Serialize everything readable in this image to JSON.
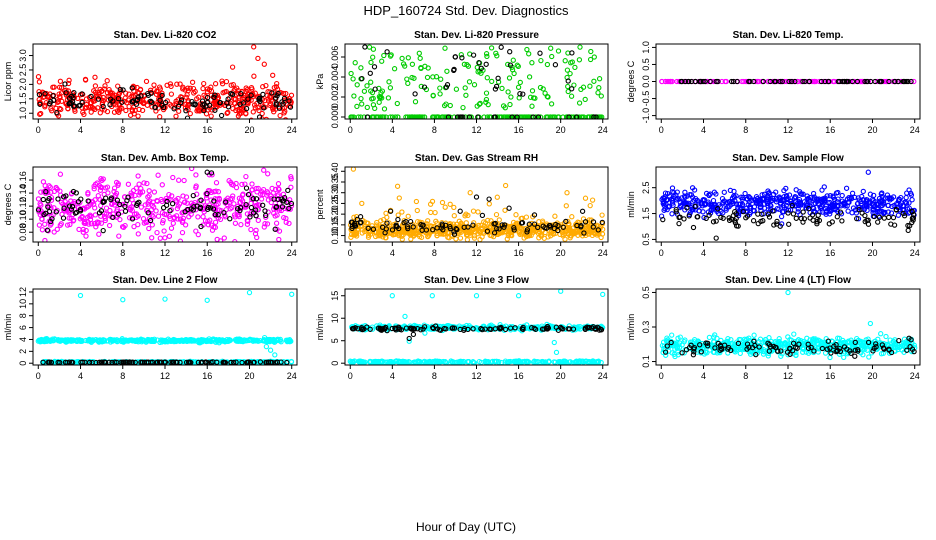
{
  "title": "HDP_160724  Std. Dev. Diagnostics",
  "xlabel": "Hour of Day (UTC)",
  "x_ticks": [
    0,
    4,
    8,
    12,
    16,
    20,
    24
  ],
  "xlim": [
    -0.5,
    24.5
  ],
  "chart_data": [
    {
      "type": "scatter",
      "title": "Stan. Dev. Li-820 CO2",
      "ylabel": "Licor ppm",
      "ylim": [
        0.8,
        3.4
      ],
      "y_ticks": [
        1.0,
        1.5,
        2.0,
        2.5,
        3.0
      ],
      "y_tick_labels": [
        "1.0",
        "1.5",
        "2.0",
        "2.5",
        "3.0"
      ],
      "series": [
        {
          "color": "#ff0000",
          "pattern": "noisy",
          "base": 1.45,
          "spread": 0.3,
          "count": 480,
          "outliers": [
            [
              20.4,
              3.3
            ],
            [
              20.8,
              2.9
            ],
            [
              21.4,
              2.7
            ],
            [
              18.4,
              2.6
            ]
          ]
        },
        {
          "color": "#000000",
          "pattern": "noisy",
          "base": 1.4,
          "spread": 0.2,
          "count": 110,
          "outliers": []
        }
      ]
    },
    {
      "type": "scatter",
      "title": "Stan. Dev. Li-820 Pressure",
      "ylabel": "kPa",
      "ylim": [
        -0.0002,
        0.0073
      ],
      "y_ticks": [
        0.0,
        0.002,
        0.004,
        0.006
      ],
      "y_tick_labels": [
        "0.000",
        "0.002",
        "0.004",
        "0.006"
      ],
      "series": [
        {
          "color": "#00cc00",
          "pattern": "bimodal",
          "levels": [
            0.0,
            0.005,
            0.006,
            0.007,
            0.004,
            0.003,
            0.002
          ],
          "count": 200,
          "outliers": []
        },
        {
          "color": "#00cc00",
          "pattern": "flat",
          "base": 0.0,
          "spread": 0.0,
          "count": 140,
          "outliers": []
        },
        {
          "color": "#000000",
          "pattern": "bimodal",
          "levels": [
            0.0,
            0.0,
            0.0,
            0.005,
            0.006,
            0.007,
            0.004,
            0.003
          ],
          "count": 50,
          "outliers": []
        }
      ]
    },
    {
      "type": "scatter",
      "title": "Stan. Dev. Li-820 Temp.",
      "ylabel": "degrees C",
      "ylim": [
        -1.1,
        1.1
      ],
      "y_ticks": [
        -1.0,
        -0.5,
        0.0,
        0.5,
        1.0
      ],
      "y_tick_labels": [
        "-1.0",
        "-0.5",
        "0.0",
        "0.5",
        "1.0"
      ],
      "series": [
        {
          "color": "#ff00ff",
          "pattern": "flat",
          "base": 0.0,
          "spread": 0.0,
          "count": 140,
          "outliers": []
        },
        {
          "color": "#000000",
          "pattern": "flat",
          "base": 0.0,
          "spread": 0.0,
          "count": 70,
          "outliers": []
        }
      ]
    },
    {
      "type": "scatter",
      "title": "Stan. Dev. Amb. Box Temp.",
      "ylabel": "degrees C",
      "ylim": [
        0.065,
        0.18
      ],
      "y_ticks": [
        0.08,
        0.1,
        0.12,
        0.14,
        0.16
      ],
      "y_tick_labels": [
        "0.08",
        "0.10",
        "0.12",
        "0.14",
        "0.16"
      ],
      "series": [
        {
          "color": "#ff00ff",
          "pattern": "noisy",
          "base": 0.118,
          "spread": 0.022,
          "count": 520,
          "outliers": [
            [
              16.2,
              0.168
            ]
          ]
        },
        {
          "color": "#000000",
          "pattern": "noisy",
          "base": 0.117,
          "spread": 0.014,
          "count": 110,
          "outliers": [
            [
              16.0,
              0.172
            ],
            [
              16.4,
              0.171
            ]
          ]
        }
      ]
    },
    {
      "type": "scatter",
      "title": "Stan. Dev. Gas Stream RH",
      "ylabel": "percent",
      "ylim": [
        0.07,
        0.42
      ],
      "y_ticks": [
        0.1,
        0.15,
        0.2,
        0.25,
        0.3,
        0.35,
        0.4
      ],
      "y_tick_labels": [
        "0.10",
        "0.15",
        "0.20",
        "0.25",
        "0.30",
        "0.35",
        "0.40"
      ],
      "series": [
        {
          "color": "#ffaa00",
          "pattern": "skewed",
          "base": 0.125,
          "spread": 0.035,
          "count": 650,
          "outliers": [
            [
              0.3,
              0.41
            ],
            [
              4.5,
              0.33
            ],
            [
              11.4,
              0.3
            ],
            [
              20.6,
              0.3
            ]
          ]
        },
        {
          "color": "#000000",
          "pattern": "skewed",
          "base": 0.14,
          "spread": 0.03,
          "count": 95,
          "outliers": [
            [
              12.0,
              0.28
            ],
            [
              13.2,
              0.27
            ]
          ]
        }
      ]
    },
    {
      "type": "scatter",
      "title": "Stan. Dev. Sample Flow",
      "ylabel": "ml/min",
      "ylim": [
        0.4,
        3.3
      ],
      "y_ticks": [
        0.5,
        1.5,
        2.5
      ],
      "y_tick_labels": [
        "0.5",
        "1.5",
        "2.5"
      ],
      "series": [
        {
          "color": "#0000ff",
          "pattern": "noisy",
          "base": 1.9,
          "spread": 0.22,
          "count": 520,
          "outliers": [
            [
              19.6,
              3.1
            ],
            [
              11.4,
              1.1
            ]
          ]
        },
        {
          "color": "#000000",
          "pattern": "noisy",
          "base": 1.35,
          "spread": 0.18,
          "count": 100,
          "outliers": [
            [
              5.2,
              0.55
            ]
          ]
        }
      ]
    },
    {
      "type": "scatter",
      "title": "Stan. Dev. Line 2 Flow",
      "ylabel": "ml/min",
      "ylim": [
        -0.3,
        12.5
      ],
      "y_ticks": [
        0,
        2,
        4,
        6,
        8,
        10,
        12
      ],
      "y_tick_labels": [
        "0",
        "2",
        "4",
        "6",
        "8",
        "10",
        "12"
      ],
      "series": [
        {
          "color": "#00ffff",
          "pattern": "noisy",
          "base": 3.8,
          "spread": 0.12,
          "count": 420,
          "outliers": [
            [
              4.0,
              11.4
            ],
            [
              8.0,
              10.7
            ],
            [
              12.0,
              10.8
            ],
            [
              16.0,
              10.6
            ],
            [
              20.0,
              11.9
            ],
            [
              24.0,
              11.6
            ],
            [
              22.0,
              2.2
            ],
            [
              22.4,
              1.4
            ],
            [
              21.6,
              2.8
            ]
          ]
        },
        {
          "color": "#00ffff",
          "pattern": "flat",
          "base": 0.2,
          "spread": 0.05,
          "count": 240,
          "outliers": []
        },
        {
          "color": "#000000",
          "pattern": "flat",
          "base": 0.15,
          "spread": 0.03,
          "count": 110,
          "outliers": []
        }
      ]
    },
    {
      "type": "scatter",
      "title": "Stan. Dev. Line 3 Flow",
      "ylabel": "ml/min",
      "ylim": [
        -0.4,
        16.5
      ],
      "y_ticks": [
        0,
        5,
        10,
        15
      ],
      "y_tick_labels": [
        "0",
        "5",
        "10",
        "15"
      ],
      "series": [
        {
          "color": "#00ffff",
          "pattern": "noisy",
          "base": 7.9,
          "spread": 0.25,
          "count": 300,
          "outliers": [
            [
              4.0,
              15.0
            ],
            [
              7.8,
              15.0
            ],
            [
              12.0,
              15.0
            ],
            [
              16.0,
              15.0
            ],
            [
              20.0,
              16.0
            ],
            [
              24.0,
              15.3
            ],
            [
              5.2,
              10.4
            ],
            [
              19.6,
              2.4
            ],
            [
              19.4,
              4.6
            ],
            [
              5.6,
              4.9
            ]
          ]
        },
        {
          "color": "#00ffff",
          "pattern": "flat",
          "base": 0.3,
          "spread": 0.1,
          "count": 260,
          "outliers": []
        },
        {
          "color": "#000000",
          "pattern": "noisy",
          "base": 7.7,
          "spread": 0.2,
          "count": 110,
          "outliers": [
            [
              5.6,
              5.5
            ],
            [
              6.0,
              6.4
            ]
          ]
        }
      ]
    },
    {
      "type": "scatter",
      "title": "Stan. Dev. Line 4 (LT) Flow",
      "ylabel": "ml/min",
      "ylim": [
        0.08,
        0.52
      ],
      "y_ticks": [
        0.1,
        0.3,
        0.5
      ],
      "y_tick_labels": [
        "0.1",
        "0.3",
        "0.5"
      ],
      "series": [
        {
          "color": "#00ffff",
          "pattern": "noisy",
          "base": 0.19,
          "spread": 0.025,
          "count": 540,
          "outliers": [
            [
              12.0,
              0.5
            ],
            [
              19.8,
              0.32
            ]
          ]
        },
        {
          "color": "#000000",
          "pattern": "noisy",
          "base": 0.18,
          "spread": 0.02,
          "count": 100,
          "outliers": []
        }
      ]
    }
  ]
}
